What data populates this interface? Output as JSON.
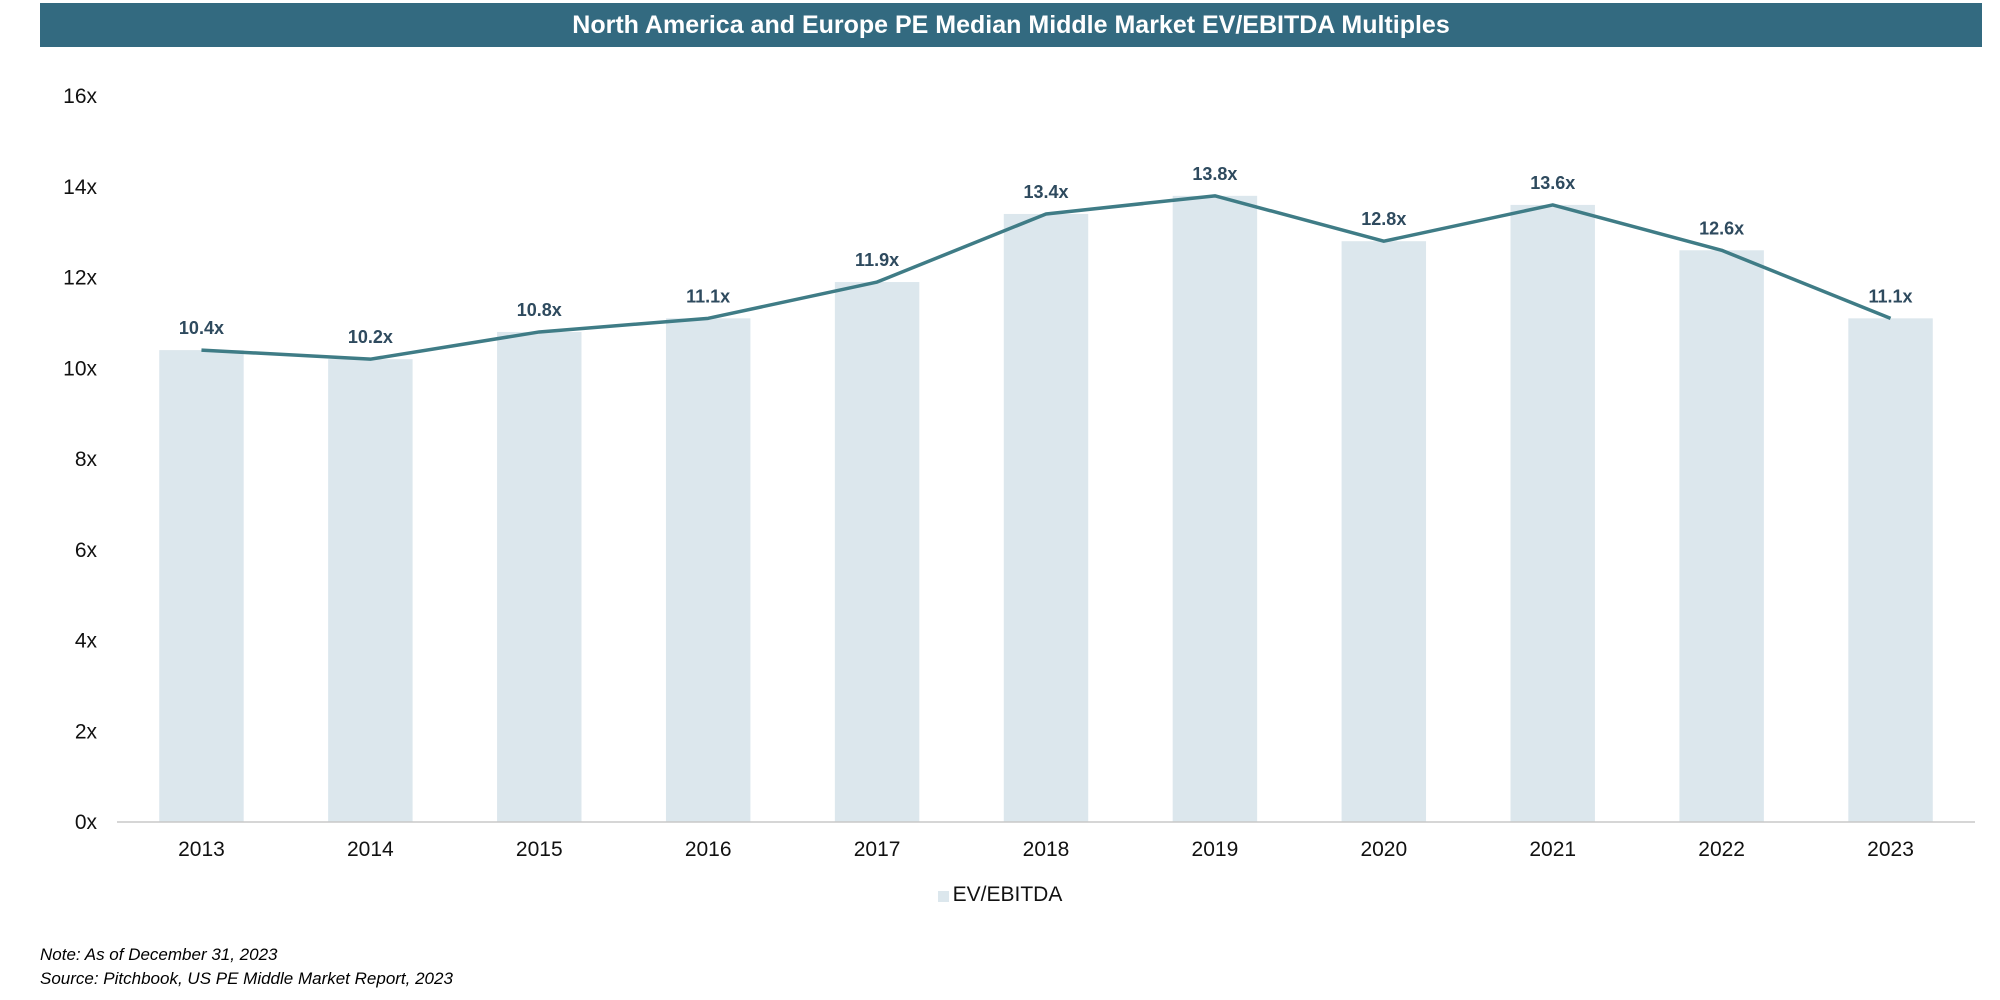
{
  "chart_data": {
    "type": "bar",
    "title": "North America and Europe PE Median Middle Market EV/EBITDA Multiples",
    "categories": [
      "2013",
      "2014",
      "2015",
      "2016",
      "2017",
      "2018",
      "2019",
      "2020",
      "2021",
      "2022",
      "2023"
    ],
    "series": [
      {
        "name": "EV/EBITDA",
        "values": [
          10.4,
          10.2,
          10.8,
          11.1,
          11.9,
          13.4,
          13.8,
          12.8,
          13.6,
          12.6,
          11.1
        ]
      }
    ],
    "data_labels": [
      "10.4x",
      "10.2x",
      "10.8x",
      "11.1x",
      "11.9x",
      "13.4x",
      "13.8x",
      "12.8x",
      "13.6x",
      "12.6x",
      "11.1x"
    ],
    "overlay_line": {
      "series": "EV/EBITDA",
      "color": "#3f7c86"
    },
    "ylim": [
      0,
      16
    ],
    "yticks": [
      0,
      2,
      4,
      6,
      8,
      10,
      12,
      14,
      16
    ],
    "ytick_labels": [
      "0x",
      "2x",
      "4x",
      "6x",
      "8x",
      "10x",
      "12x",
      "14x",
      "16x"
    ],
    "xlabel": "",
    "ylabel": "",
    "legend": {
      "position": "bottom-center",
      "entries": [
        "EV/EBITDA"
      ]
    },
    "grid": false,
    "colors": {
      "bar": "#dce7ed",
      "line": "#3f7c86",
      "label": "#2e4a5e",
      "title_bg": "#336a80"
    }
  },
  "notes": {
    "note": "Note: As of December 31, 2023",
    "source": "Source: Pitchbook, US PE Middle Market Report, 2023"
  }
}
